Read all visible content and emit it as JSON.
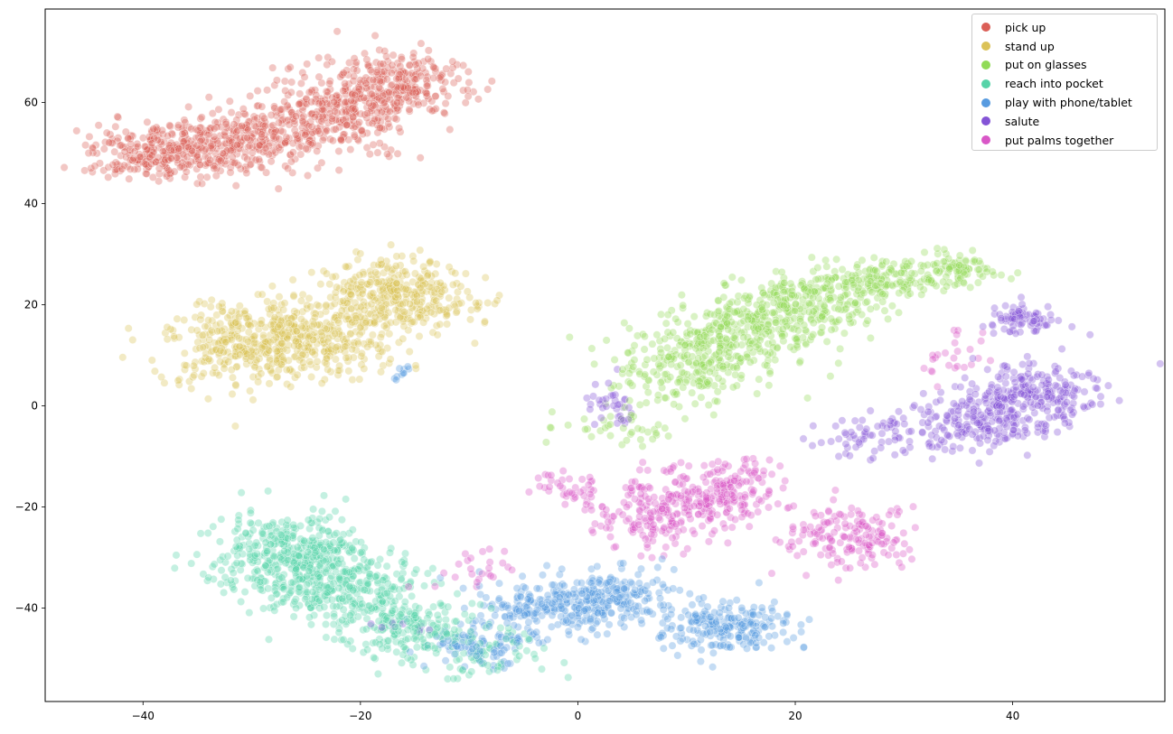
{
  "chart_data": {
    "type": "scatter",
    "title": "",
    "xlabel": "",
    "ylabel": "",
    "xlim": [
      -49,
      54
    ],
    "ylim": [
      -58.5,
      78.5
    ],
    "xticks": [
      -40,
      -20,
      0,
      20,
      40
    ],
    "yticks": [
      -40,
      -20,
      0,
      20,
      40,
      60
    ],
    "xtick_labels": [
      "−40",
      "−20",
      "0",
      "20",
      "40"
    ],
    "ytick_labels": [
      "−40",
      "−20",
      "0",
      "20",
      "40",
      "60"
    ],
    "grid": false,
    "legend_position": "top-right",
    "point_alpha": 0.35,
    "series": [
      {
        "name": "pick up",
        "color": "#db5f57",
        "clusters": [
          {
            "center": [
              -38,
              50
            ],
            "spread": [
              3.8,
              2.8
            ],
            "count": 300
          },
          {
            "center": [
              -30,
              53
            ],
            "spread": [
              4.0,
              3.0
            ],
            "count": 280
          },
          {
            "center": [
              -22,
              58
            ],
            "spread": [
              3.5,
              3.5
            ],
            "count": 260
          },
          {
            "center": [
              -17,
              64
            ],
            "spread": [
              3.2,
              3.2
            ],
            "count": 260
          }
        ]
      },
      {
        "name": "stand up",
        "color": "#dbc257",
        "clusters": [
          {
            "center": [
              -30,
              12
            ],
            "spread": [
              4.0,
              4.0
            ],
            "count": 350
          },
          {
            "center": [
              -24,
              14
            ],
            "spread": [
              3.8,
              4.0
            ],
            "count": 250
          },
          {
            "center": [
              -17,
              22
            ],
            "spread": [
              3.2,
              3.8
            ],
            "count": 350
          },
          {
            "center": [
              -11,
              21
            ],
            "spread": [
              1.8,
              2.0
            ],
            "count": 25
          }
        ]
      },
      {
        "name": "put on glasses",
        "color": "#91db57",
        "clusters": [
          {
            "center": [
              10,
              8
            ],
            "spread": [
              3.5,
              4.0
            ],
            "count": 220
          },
          {
            "center": [
              15,
              15
            ],
            "spread": [
              3.5,
              3.5
            ],
            "count": 240
          },
          {
            "center": [
              21,
              20
            ],
            "spread": [
              3.2,
              3.0
            ],
            "count": 220
          },
          {
            "center": [
              28,
              25
            ],
            "spread": [
              3.0,
              1.8
            ],
            "count": 150
          },
          {
            "center": [
              35,
              27
            ],
            "spread": [
              2.0,
              1.8
            ],
            "count": 80
          },
          {
            "center": [
              4,
              -4
            ],
            "spread": [
              2.5,
              2.0
            ],
            "count": 40
          }
        ]
      },
      {
        "name": "reach into pocket",
        "color": "#57d3a8",
        "clusters": [
          {
            "center": [
              -26,
              -30
            ],
            "spread": [
              3.5,
              4.5
            ],
            "count": 450
          },
          {
            "center": [
              -21,
              -36
            ],
            "spread": [
              3.5,
              3.5
            ],
            "count": 220
          },
          {
            "center": [
              -16,
              -44
            ],
            "spread": [
              3.0,
              3.0
            ],
            "count": 180
          },
          {
            "center": [
              -9,
              -48
            ],
            "spread": [
              3.0,
              2.5
            ],
            "count": 90
          }
        ]
      },
      {
        "name": "play with phone/tablet",
        "color": "#579be0",
        "clusters": [
          {
            "center": [
              -3,
              -40
            ],
            "spread": [
              3.5,
              3.0
            ],
            "count": 200
          },
          {
            "center": [
              3,
              -38
            ],
            "spread": [
              3.0,
              3.0
            ],
            "count": 200
          },
          {
            "center": [
              14,
              -44
            ],
            "spread": [
              3.0,
              2.5
            ],
            "count": 220
          },
          {
            "center": [
              -9,
              -48
            ],
            "spread": [
              2.5,
              2.0
            ],
            "count": 80
          },
          {
            "center": [
              -16,
              6
            ],
            "spread": [
              0.8,
              1.0
            ],
            "count": 10
          }
        ]
      },
      {
        "name": "salute",
        "color": "#8454d6",
        "clusters": [
          {
            "center": [
              42,
              2
            ],
            "spread": [
              3.0,
              3.0
            ],
            "count": 240
          },
          {
            "center": [
              36,
              -4
            ],
            "spread": [
              3.0,
              3.0
            ],
            "count": 170
          },
          {
            "center": [
              41,
              17
            ],
            "spread": [
              1.5,
              1.5
            ],
            "count": 80
          },
          {
            "center": [
              27,
              -6
            ],
            "spread": [
              3.0,
              2.0
            ],
            "count": 70
          },
          {
            "center": [
              3,
              0
            ],
            "spread": [
              1.2,
              2.0
            ],
            "count": 35
          },
          {
            "center": [
              -16,
              -44
            ],
            "spread": [
              1.5,
              1.5
            ],
            "count": 10
          }
        ]
      },
      {
        "name": "put palms together",
        "color": "#d957c7",
        "clusters": [
          {
            "center": [
              13,
              -17
            ],
            "spread": [
              3.0,
              3.0
            ],
            "count": 200
          },
          {
            "center": [
              7,
              -22
            ],
            "spread": [
              3.0,
              3.0
            ],
            "count": 170
          },
          {
            "center": [
              25,
              -26
            ],
            "spread": [
              2.5,
              3.0
            ],
            "count": 170
          },
          {
            "center": [
              -1,
              -16
            ],
            "spread": [
              1.8,
              1.8
            ],
            "count": 40
          },
          {
            "center": [
              -9,
              -33
            ],
            "spread": [
              2.0,
              2.0
            ],
            "count": 25
          },
          {
            "center": [
              35,
              10
            ],
            "spread": [
              2.0,
              3.0
            ],
            "count": 25
          }
        ]
      }
    ]
  }
}
